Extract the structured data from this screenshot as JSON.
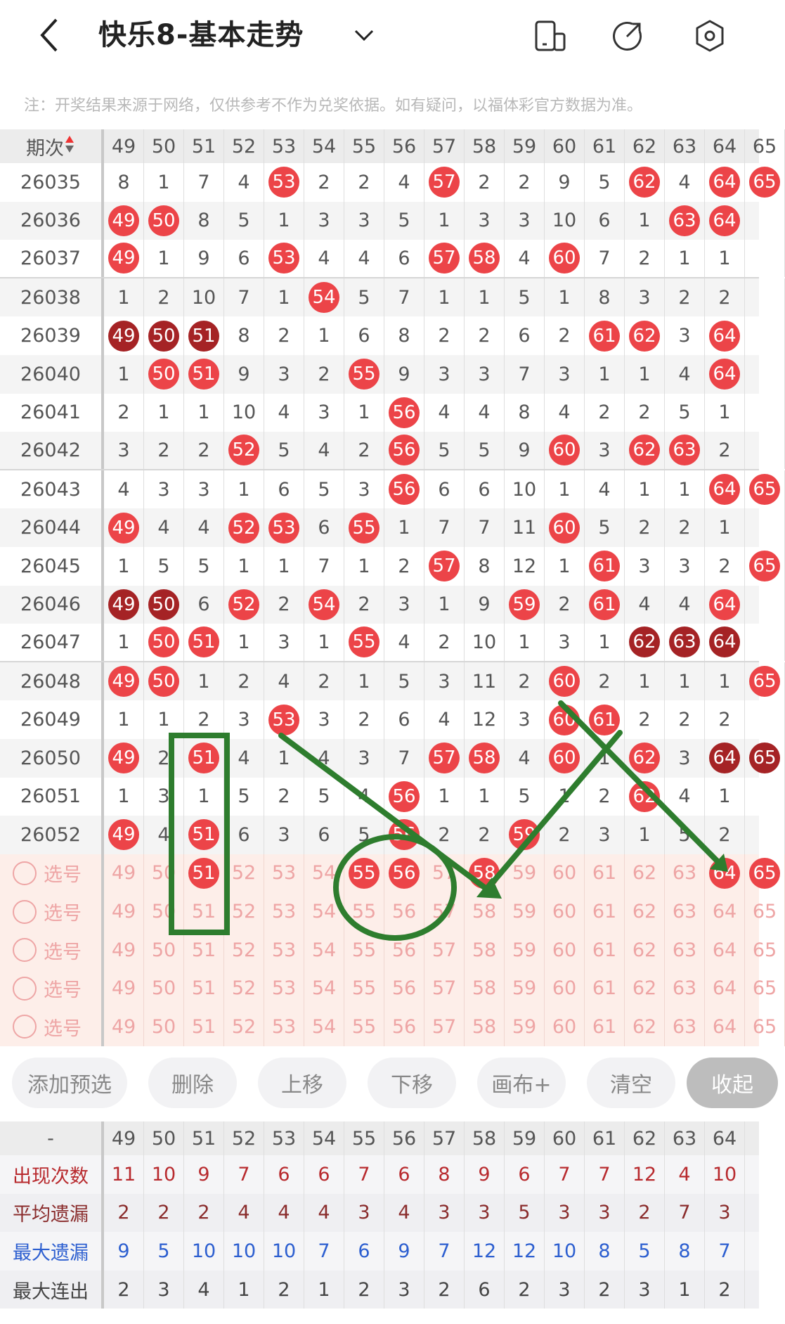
{
  "header": {
    "title": "快乐8-基本走势",
    "back_icon": "back-arrow-icon",
    "dropdown_icon": "chevron-down-icon",
    "icons": [
      "layout-icon",
      "share-icon",
      "settings-icon"
    ]
  },
  "note": "注：开奖结果来源于网络，仅供参考不作为兑奖依据。如有疑问，以福体彩官方数据为准。",
  "table": {
    "issue_header": "期次",
    "columns": [
      "49",
      "50",
      "51",
      "52",
      "53",
      "54",
      "55",
      "56",
      "57",
      "58",
      "59",
      "60",
      "61",
      "62",
      "63",
      "64",
      "65"
    ],
    "rows": [
      {
        "issue": "26035",
        "cells": [
          "8",
          "1",
          "7",
          "4",
          {
            "ball": "53"
          },
          "2",
          "2",
          "4",
          {
            "ball": "57"
          },
          "2",
          "2",
          "9",
          "5",
          {
            "ball": "62"
          },
          "4",
          {
            "ball": "64"
          },
          {
            "ball": "65"
          }
        ]
      },
      {
        "issue": "26036",
        "cells": [
          {
            "ball": "49"
          },
          {
            "ball": "50"
          },
          "8",
          "5",
          "1",
          "3",
          "3",
          "5",
          "1",
          "3",
          "3",
          "10",
          "6",
          "1",
          {
            "ball": "63"
          },
          {
            "ball": "64"
          },
          ""
        ]
      },
      {
        "issue": "26037",
        "cells": [
          {
            "ball": "49"
          },
          "1",
          "9",
          "6",
          {
            "ball": "53"
          },
          "4",
          "4",
          "6",
          {
            "ball": "57"
          },
          {
            "ball": "58"
          },
          "4",
          {
            "ball": "60"
          },
          "7",
          "2",
          "1",
          "1",
          ""
        ]
      },
      {
        "issue": "26038",
        "cells": [
          "1",
          "2",
          "10",
          "7",
          "1",
          {
            "ball": "54"
          },
          "5",
          "7",
          "1",
          "1",
          "5",
          "1",
          "8",
          "3",
          "2",
          "2",
          ""
        ]
      },
      {
        "issue": "26039",
        "cells": [
          {
            "ball": "49",
            "dark": true
          },
          {
            "ball": "50",
            "dark": true
          },
          {
            "ball": "51",
            "dark": true
          },
          "8",
          "2",
          "1",
          "6",
          "8",
          "2",
          "2",
          "6",
          "2",
          {
            "ball": "61"
          },
          {
            "ball": "62"
          },
          "3",
          {
            "ball": "64"
          },
          ""
        ]
      },
      {
        "issue": "26040",
        "cells": [
          "1",
          {
            "ball": "50"
          },
          {
            "ball": "51"
          },
          "9",
          "3",
          "2",
          {
            "ball": "55"
          },
          "9",
          "3",
          "3",
          "7",
          "3",
          "1",
          "1",
          "4",
          {
            "ball": "64"
          },
          ""
        ]
      },
      {
        "issue": "26041",
        "cells": [
          "2",
          "1",
          "1",
          "10",
          "4",
          "3",
          "1",
          {
            "ball": "56"
          },
          "4",
          "4",
          "8",
          "4",
          "2",
          "2",
          "5",
          "1",
          ""
        ]
      },
      {
        "issue": "26042",
        "cells": [
          "3",
          "2",
          "2",
          {
            "ball": "52"
          },
          "5",
          "4",
          "2",
          {
            "ball": "56"
          },
          "5",
          "5",
          "9",
          {
            "ball": "60"
          },
          "3",
          {
            "ball": "62"
          },
          {
            "ball": "63"
          },
          "2",
          ""
        ]
      },
      {
        "issue": "26043",
        "cells": [
          "4",
          "3",
          "3",
          "1",
          "6",
          "5",
          "3",
          {
            "ball": "56"
          },
          "6",
          "6",
          "10",
          "1",
          "4",
          "1",
          "1",
          {
            "ball": "64"
          },
          {
            "ball": "65"
          }
        ]
      },
      {
        "issue": "26044",
        "cells": [
          {
            "ball": "49"
          },
          "4",
          "4",
          {
            "ball": "52"
          },
          {
            "ball": "53"
          },
          "6",
          {
            "ball": "55"
          },
          "1",
          "7",
          "7",
          "11",
          {
            "ball": "60"
          },
          "5",
          "2",
          "2",
          "1",
          ""
        ]
      },
      {
        "issue": "26045",
        "cells": [
          "1",
          "5",
          "5",
          "1",
          "1",
          "7",
          "1",
          "2",
          {
            "ball": "57"
          },
          "8",
          "12",
          "1",
          {
            "ball": "61"
          },
          "3",
          "3",
          "2",
          {
            "ball": "65"
          }
        ]
      },
      {
        "issue": "26046",
        "cells": [
          {
            "ball": "49",
            "dark": true
          },
          {
            "ball": "50",
            "dark": true
          },
          "6",
          {
            "ball": "52"
          },
          "2",
          {
            "ball": "54"
          },
          "2",
          "3",
          "1",
          "9",
          {
            "ball": "59"
          },
          "2",
          {
            "ball": "61"
          },
          "4",
          "4",
          {
            "ball": "64"
          },
          ""
        ]
      },
      {
        "issue": "26047",
        "cells": [
          "1",
          {
            "ball": "50"
          },
          {
            "ball": "51"
          },
          "1",
          "3",
          "1",
          {
            "ball": "55"
          },
          "4",
          "2",
          "10",
          "1",
          "3",
          "1",
          {
            "ball": "62",
            "dark": true
          },
          {
            "ball": "63",
            "dark": true
          },
          {
            "ball": "64",
            "dark": true
          },
          ""
        ]
      },
      {
        "issue": "26048",
        "cells": [
          {
            "ball": "49"
          },
          {
            "ball": "50"
          },
          "1",
          "2",
          "4",
          "2",
          "1",
          "5",
          "3",
          "11",
          "2",
          {
            "ball": "60"
          },
          "2",
          "1",
          "1",
          "1",
          {
            "ball": "65"
          }
        ]
      },
      {
        "issue": "26049",
        "cells": [
          "1",
          "1",
          "2",
          "3",
          {
            "ball": "53"
          },
          "3",
          "2",
          "6",
          "4",
          "12",
          "3",
          {
            "ball": "60"
          },
          {
            "ball": "61"
          },
          "2",
          "2",
          "2",
          ""
        ]
      },
      {
        "issue": "26050",
        "cells": [
          {
            "ball": "49"
          },
          "2",
          {
            "ball": "51"
          },
          "4",
          "1",
          "4",
          "3",
          "7",
          {
            "ball": "57"
          },
          {
            "ball": "58"
          },
          "4",
          {
            "ball": "60"
          },
          "1",
          {
            "ball": "62"
          },
          "3",
          {
            "ball": "64",
            "dark": true
          },
          {
            "ball": "65",
            "dark": true
          }
        ]
      },
      {
        "issue": "26051",
        "cells": [
          "1",
          "3",
          "1",
          "5",
          "2",
          "5",
          "4",
          {
            "ball": "56"
          },
          "1",
          "1",
          "5",
          "1",
          "2",
          {
            "ball": "62"
          },
          "4",
          "1",
          ""
        ]
      },
      {
        "issue": "26052",
        "cells": [
          {
            "ball": "49"
          },
          "4",
          {
            "ball": "51"
          },
          "6",
          "3",
          "6",
          "5",
          {
            "ball": "56"
          },
          "2",
          "2",
          {
            "ball": "59"
          },
          "2",
          "3",
          "1",
          "5",
          "2",
          ""
        ]
      }
    ],
    "select_label": "选号",
    "select_rows": [
      {
        "selected": [
          "51",
          "55",
          "56",
          "58",
          "64",
          "65"
        ]
      },
      {
        "selected": []
      },
      {
        "selected": []
      },
      {
        "selected": []
      },
      {
        "selected": []
      }
    ]
  },
  "buttons": [
    "添加预选",
    "删除",
    "上移",
    "下移",
    "画布+",
    "清空",
    "收起"
  ],
  "stats": {
    "header_label": "-",
    "columns": [
      "49",
      "50",
      "51",
      "52",
      "53",
      "54",
      "55",
      "56",
      "57",
      "58",
      "59",
      "60",
      "61",
      "62",
      "63",
      "64"
    ],
    "rows": [
      {
        "label": "出现次数",
        "values": [
          "11",
          "10",
          "9",
          "7",
          "6",
          "6",
          "7",
          "6",
          "8",
          "9",
          "6",
          "7",
          "7",
          "12",
          "4",
          "10"
        ]
      },
      {
        "label": "平均遗漏",
        "values": [
          "2",
          "2",
          "2",
          "4",
          "4",
          "4",
          "3",
          "4",
          "3",
          "3",
          "5",
          "3",
          "3",
          "2",
          "7",
          "3"
        ]
      },
      {
        "label": "最大遗漏",
        "values": [
          "9",
          "5",
          "10",
          "10",
          "10",
          "7",
          "6",
          "9",
          "7",
          "12",
          "12",
          "10",
          "8",
          "5",
          "8",
          "7"
        ]
      },
      {
        "label": "最大连出",
        "values": [
          "2",
          "3",
          "4",
          "1",
          "2",
          "1",
          "2",
          "3",
          "2",
          "6",
          "2",
          "3",
          "2",
          "3",
          "1",
          "2"
        ]
      }
    ]
  },
  "colors": {
    "ball": "#ec4448",
    "ball_repeat": "#a52325",
    "annotation": "#2e7d2e",
    "select_bg": "#fdeee9"
  }
}
